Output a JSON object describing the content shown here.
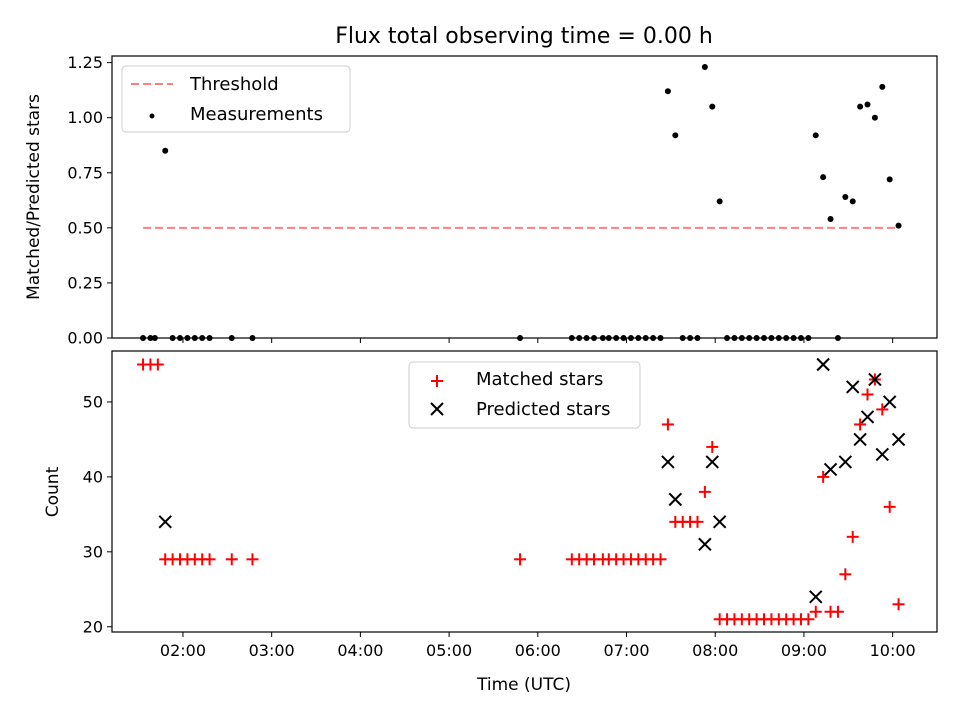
{
  "chart_data": [
    {
      "type": "scatter",
      "title": "Flux total observing time = 0.00 h",
      "ylabel": "Matched/Predicted stars",
      "xlabel": "",
      "xlim": [
        "01:12",
        "10:30"
      ],
      "ylim": [
        0.0,
        1.28
      ],
      "yticks": [
        0.0,
        0.25,
        0.5,
        0.75,
        1.0,
        1.25
      ],
      "yticklabels": [
        "0.00",
        "0.25",
        "0.50",
        "0.75",
        "1.00",
        "1.25"
      ],
      "legend": {
        "placement": "top-left",
        "entries": [
          "Threshold",
          "Measurements"
        ]
      },
      "threshold": {
        "name": "Threshold",
        "value": 0.5,
        "x": [
          "01:33",
          "10:04"
        ],
        "color": "#ff7f7f"
      },
      "series": [
        {
          "name": "Measurements",
          "color": "#000000",
          "points": [
            [
              "01:33",
              0
            ],
            [
              "01:38",
              0
            ],
            [
              "01:41",
              0
            ],
            [
              "01:48",
              0.85
            ],
            [
              "01:53",
              0
            ],
            [
              "01:58",
              0
            ],
            [
              "02:03",
              0
            ],
            [
              "02:08",
              0
            ],
            [
              "02:13",
              0
            ],
            [
              "02:18",
              0
            ],
            [
              "02:33",
              0
            ],
            [
              "02:47",
              0
            ],
            [
              "05:48",
              0
            ],
            [
              "06:23",
              0
            ],
            [
              "06:28",
              0
            ],
            [
              "06:33",
              0
            ],
            [
              "06:38",
              0
            ],
            [
              "06:44",
              0
            ],
            [
              "06:48",
              0
            ],
            [
              "06:53",
              0
            ],
            [
              "06:58",
              0
            ],
            [
              "07:03",
              0
            ],
            [
              "07:08",
              0
            ],
            [
              "07:13",
              0
            ],
            [
              "07:18",
              0
            ],
            [
              "07:23",
              0
            ],
            [
              "07:28",
              1.12
            ],
            [
              "07:33",
              0.92
            ],
            [
              "07:38",
              0
            ],
            [
              "07:43",
              0
            ],
            [
              "07:48",
              0
            ],
            [
              "07:53",
              1.23
            ],
            [
              "07:58",
              1.05
            ],
            [
              "08:03",
              0.62
            ],
            [
              "08:08",
              0
            ],
            [
              "08:13",
              0
            ],
            [
              "08:18",
              0
            ],
            [
              "08:23",
              0
            ],
            [
              "08:28",
              0
            ],
            [
              "08:33",
              0
            ],
            [
              "08:38",
              0
            ],
            [
              "08:43",
              0
            ],
            [
              "08:48",
              0
            ],
            [
              "08:53",
              0
            ],
            [
              "08:58",
              0
            ],
            [
              "09:03",
              0
            ],
            [
              "09:08",
              0.92
            ],
            [
              "09:13",
              0.73
            ],
            [
              "09:18",
              0.54
            ],
            [
              "09:23",
              0
            ],
            [
              "09:28",
              0.64
            ],
            [
              "09:33",
              0.62
            ],
            [
              "09:38",
              1.05
            ],
            [
              "09:43",
              1.06
            ],
            [
              "09:48",
              1.0
            ],
            [
              "09:53",
              1.14
            ],
            [
              "09:58",
              0.72
            ],
            [
              "10:04",
              0.51
            ]
          ]
        }
      ]
    },
    {
      "type": "scatter",
      "title": "",
      "xlabel": "Time (UTC)",
      "ylabel": "Count",
      "xlim": [
        "01:12",
        "10:30"
      ],
      "ylim": [
        19.3,
        56.8
      ],
      "xticks": [
        "02:00",
        "03:00",
        "04:00",
        "05:00",
        "06:00",
        "07:00",
        "08:00",
        "09:00",
        "10:00"
      ],
      "yticks": [
        20,
        30,
        40,
        50
      ],
      "legend": {
        "placement": "top-center",
        "entries": [
          "Matched stars",
          "Predicted stars"
        ]
      },
      "series": [
        {
          "name": "Matched stars",
          "marker": "+",
          "color": "#ff0000",
          "points": [
            [
              "01:33",
              55
            ],
            [
              "01:38",
              55
            ],
            [
              "01:43",
              55
            ],
            [
              "01:48",
              29
            ],
            [
              "01:53",
              29
            ],
            [
              "01:58",
              29
            ],
            [
              "02:03",
              29
            ],
            [
              "02:08",
              29
            ],
            [
              "02:13",
              29
            ],
            [
              "02:18",
              29
            ],
            [
              "02:33",
              29
            ],
            [
              "02:47",
              29
            ],
            [
              "05:48",
              29
            ],
            [
              "06:23",
              29
            ],
            [
              "06:28",
              29
            ],
            [
              "06:33",
              29
            ],
            [
              "06:38",
              29
            ],
            [
              "06:44",
              29
            ],
            [
              "06:48",
              29
            ],
            [
              "06:53",
              29
            ],
            [
              "06:58",
              29
            ],
            [
              "07:03",
              29
            ],
            [
              "07:08",
              29
            ],
            [
              "07:13",
              29
            ],
            [
              "07:18",
              29
            ],
            [
              "07:23",
              29
            ],
            [
              "07:28",
              47
            ],
            [
              "07:33",
              34
            ],
            [
              "07:38",
              34
            ],
            [
              "07:43",
              34
            ],
            [
              "07:48",
              34
            ],
            [
              "07:53",
              38
            ],
            [
              "07:58",
              44
            ],
            [
              "08:03",
              21
            ],
            [
              "08:08",
              21
            ],
            [
              "08:13",
              21
            ],
            [
              "08:18",
              21
            ],
            [
              "08:23",
              21
            ],
            [
              "08:28",
              21
            ],
            [
              "08:33",
              21
            ],
            [
              "08:38",
              21
            ],
            [
              "08:43",
              21
            ],
            [
              "08:48",
              21
            ],
            [
              "08:53",
              21
            ],
            [
              "08:58",
              21
            ],
            [
              "09:03",
              21
            ],
            [
              "09:08",
              22
            ],
            [
              "09:13",
              40
            ],
            [
              "09:18",
              22
            ],
            [
              "09:23",
              22
            ],
            [
              "09:28",
              27
            ],
            [
              "09:33",
              32
            ],
            [
              "09:38",
              47
            ],
            [
              "09:43",
              51
            ],
            [
              "09:48",
              53
            ],
            [
              "09:53",
              49
            ],
            [
              "09:58",
              36
            ],
            [
              "10:04",
              23
            ]
          ]
        },
        {
          "name": "Predicted stars",
          "marker": "x",
          "color": "#000000",
          "points": [
            [
              "01:48",
              34
            ],
            [
              "07:28",
              42
            ],
            [
              "07:33",
              37
            ],
            [
              "07:53",
              31
            ],
            [
              "07:58",
              42
            ],
            [
              "08:03",
              34
            ],
            [
              "09:08",
              24
            ],
            [
              "09:13",
              55
            ],
            [
              "09:18",
              41
            ],
            [
              "09:28",
              42
            ],
            [
              "09:33",
              52
            ],
            [
              "09:38",
              45
            ],
            [
              "09:43",
              48
            ],
            [
              "09:48",
              53
            ],
            [
              "09:53",
              43
            ],
            [
              "09:58",
              50
            ],
            [
              "10:04",
              45
            ]
          ]
        }
      ]
    }
  ]
}
